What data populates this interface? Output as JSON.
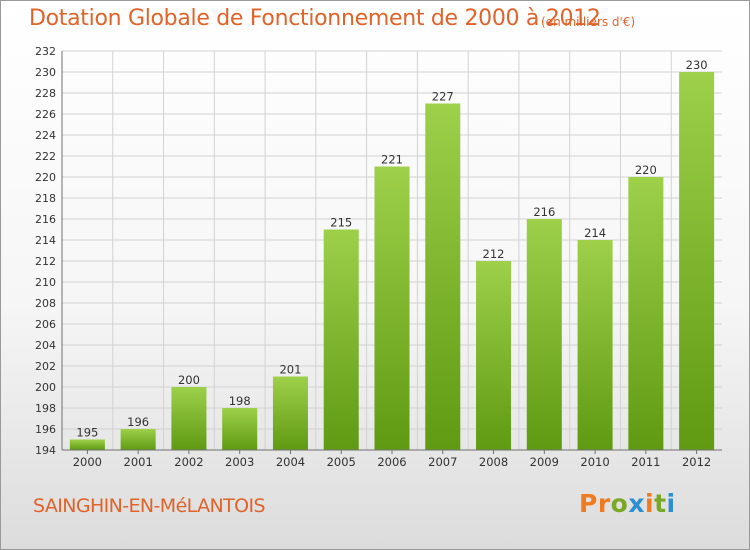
{
  "header": {
    "title": "Dotation Globale de Fonctionnement de 2000 à 2012",
    "subtitle": "(en milliers d'€)"
  },
  "footer": {
    "commune": "SAINGHIN-EN-MéLANTOIS",
    "logo_letters": [
      "P",
      "r",
      "o",
      "x",
      "i",
      "t",
      "i"
    ],
    "logo_colors": [
      "#f07a1f",
      "#f07a1f",
      "#7aa826",
      "#2b8fd4",
      "#f07a1f",
      "#7aa826",
      "#2b8fd4"
    ]
  },
  "colors": {
    "bar_top": "#9ed04a",
    "bar_bottom": "#5f9a12",
    "grid": "#d2d2d2",
    "axis": "#707070",
    "text": "#333333",
    "accent": "#e0632a"
  },
  "chart_data": {
    "type": "bar",
    "categories": [
      "2000",
      "2001",
      "2002",
      "2003",
      "2004",
      "2005",
      "2006",
      "2007",
      "2008",
      "2009",
      "2010",
      "2011",
      "2012"
    ],
    "values": [
      195,
      196,
      200,
      198,
      201,
      215,
      221,
      227,
      212,
      216,
      214,
      220,
      230
    ],
    "ylim": [
      194,
      232
    ],
    "yticks": [
      194,
      196,
      198,
      200,
      202,
      204,
      206,
      208,
      210,
      212,
      214,
      216,
      218,
      220,
      222,
      224,
      226,
      228,
      230,
      232
    ],
    "grid": true,
    "data_labels": true
  }
}
